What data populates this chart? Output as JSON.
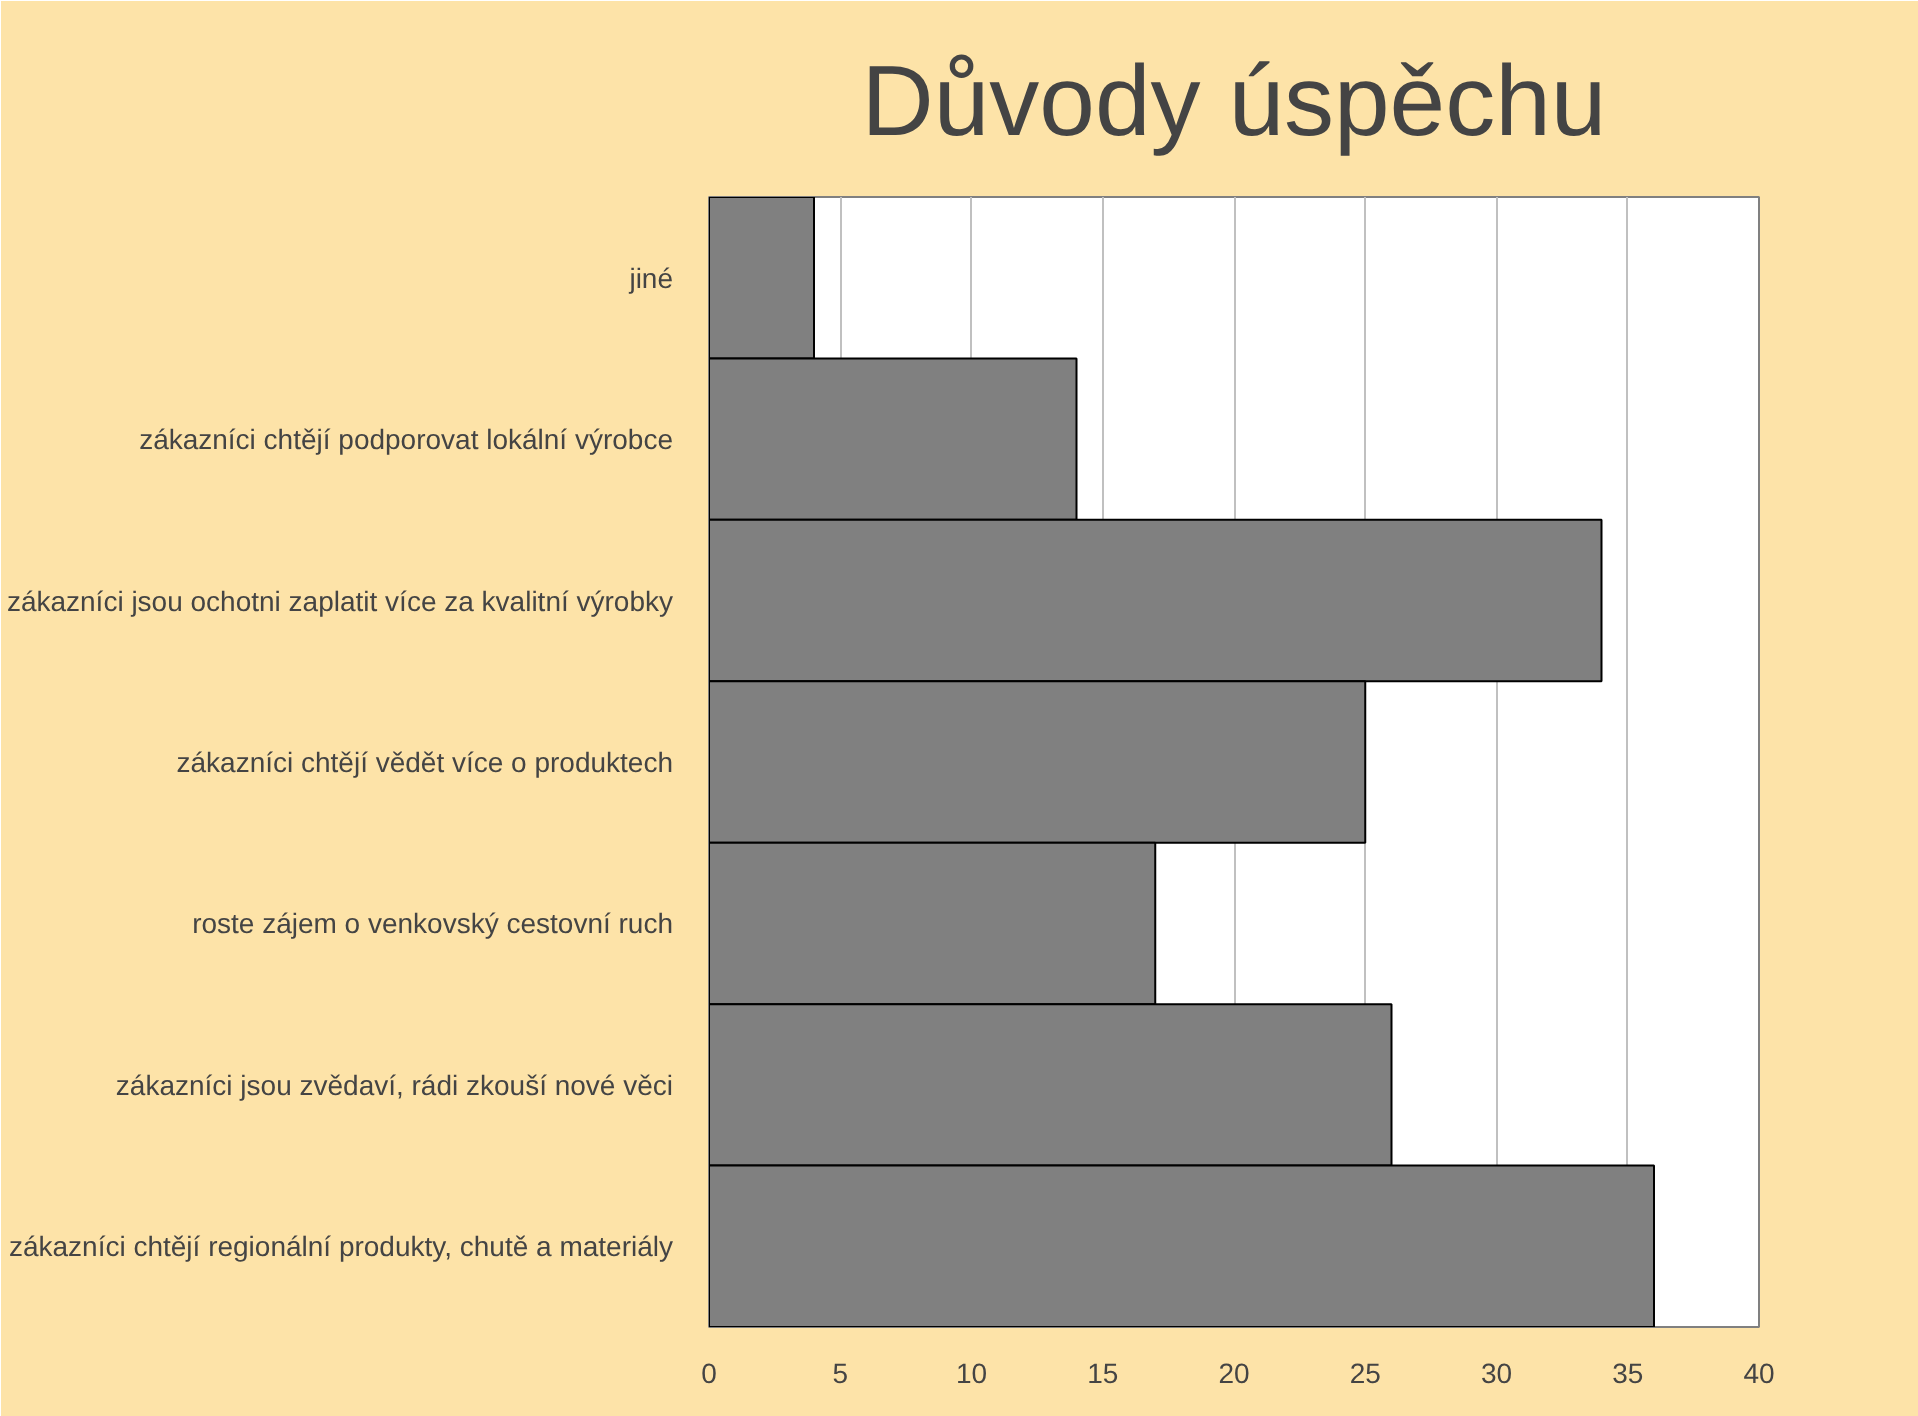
{
  "chart_data": {
    "type": "bar",
    "orientation": "horizontal",
    "title": "Důvody úspěchu",
    "categories": [
      "jiné",
      "zákazníci chtějí podporovat lokální výrobce",
      "zákazníci jsou ochotni zaplatit více za kvalitní výrobky",
      "zákazníci chtějí vědět více o produktech",
      "roste zájem o venkovský cestovní ruch",
      "zákazníci jsou zvědaví, rádi zkouší nové věci",
      "zákazníci chtějí regionální produkty, chutě a materiály"
    ],
    "values": [
      4,
      14,
      34,
      25,
      17,
      26,
      36
    ],
    "color": "#808080",
    "xlim": [
      0,
      40
    ],
    "xticks": [
      0,
      5,
      10,
      15,
      20,
      25,
      30,
      35,
      40
    ],
    "grid": "x"
  }
}
